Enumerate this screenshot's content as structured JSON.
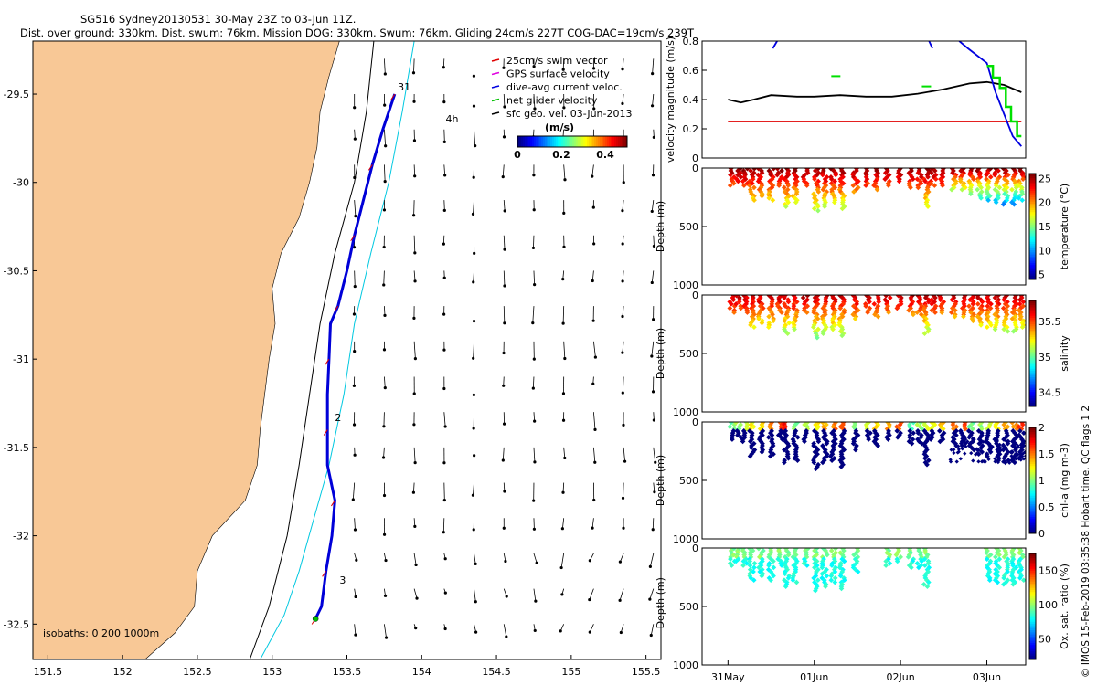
{
  "header": {
    "line1": "SG516 Sydney20130531 30-May 23Z to 03-Jun 11Z.",
    "line2": "Dist. over ground: 330km. Dist. swum: 76km. Mission DOG: 330km. Swum: 76km. Gliding 24cm/s 227T COG-DAC=19cm/s 239T"
  },
  "credit": "© IMOS 15-Feb-2019 03:35:38 Hobart time. QC flags 1  2",
  "chart_data": [
    {
      "type": "map",
      "xlim": [
        151.4,
        155.6
      ],
      "ylim": [
        -32.7,
        -29.2
      ],
      "xticks": [
        151.5,
        152,
        152.5,
        153,
        153.5,
        154,
        154.5,
        155,
        155.5
      ],
      "xtick_labels": [
        "151.5",
        "152",
        "152.5",
        "153",
        "153.5",
        "154",
        "154.5",
        "155",
        "155.5"
      ],
      "yticks": [
        -29.5,
        -30,
        -30.5,
        -31,
        -31.5,
        -32,
        -32.5
      ],
      "ytick_labels": [
        "-29.5",
        "-30",
        "-30.5",
        "-31",
        "-31.5",
        "-32",
        "-32.5"
      ],
      "land_color": "#f8c896",
      "coast": [
        [
          -29.2,
          153.45
        ],
        [
          -29.4,
          153.38
        ],
        [
          -29.6,
          153.32
        ],
        [
          -29.8,
          153.3
        ],
        [
          -30.0,
          153.25
        ],
        [
          -30.2,
          153.18
        ],
        [
          -30.4,
          153.06
        ],
        [
          -30.6,
          153.0
        ],
        [
          -30.8,
          153.02
        ],
        [
          -31.0,
          152.98
        ],
        [
          -31.2,
          152.95
        ],
        [
          -31.4,
          152.92
        ],
        [
          -31.6,
          152.9
        ],
        [
          -31.8,
          152.82
        ],
        [
          -32.0,
          152.6
        ],
        [
          -32.2,
          152.5
        ],
        [
          -32.4,
          152.48
        ],
        [
          -32.55,
          152.35
        ],
        [
          -32.7,
          152.15
        ]
      ],
      "isobath_200": [
        [
          -29.2,
          153.68
        ],
        [
          -29.6,
          153.63
        ],
        [
          -30.0,
          153.55
        ],
        [
          -30.4,
          153.42
        ],
        [
          -30.8,
          153.32
        ],
        [
          -31.2,
          153.25
        ],
        [
          -31.6,
          153.18
        ],
        [
          -32.0,
          153.1
        ],
        [
          -32.4,
          152.98
        ],
        [
          -32.7,
          152.85
        ]
      ],
      "isobath_1000": [
        [
          -29.2,
          153.95
        ],
        [
          -29.6,
          153.87
        ],
        [
          -30.0,
          153.78
        ],
        [
          -30.4,
          153.66
        ],
        [
          -30.8,
          153.55
        ],
        [
          -31.2,
          153.48
        ],
        [
          -31.6,
          153.38
        ],
        [
          -31.9,
          153.28
        ],
        [
          -32.2,
          153.18
        ],
        [
          -32.45,
          153.08
        ],
        [
          -32.7,
          152.92
        ]
      ],
      "track": [
        [
          -29.5,
          153.82
        ],
        [
          -29.7,
          153.74
        ],
        [
          -29.9,
          153.67
        ],
        [
          -30.1,
          153.61
        ],
        [
          -30.3,
          153.55
        ],
        [
          -30.5,
          153.5
        ],
        [
          -30.7,
          153.44
        ],
        [
          -30.8,
          153.39
        ],
        [
          -31.0,
          153.38
        ],
        [
          -31.2,
          153.37
        ],
        [
          -31.4,
          153.37
        ],
        [
          -31.6,
          153.37
        ],
        [
          -31.8,
          153.42
        ],
        [
          -32.0,
          153.4
        ],
        [
          -32.2,
          153.36
        ],
        [
          -32.4,
          153.33
        ],
        [
          -32.47,
          153.29
        ]
      ],
      "track_labels": [
        {
          "text": "31",
          "lat": -29.48,
          "lon": 153.84
        },
        {
          "text": "2",
          "lat": -31.35,
          "lon": 153.42
        },
        {
          "text": "3",
          "lat": -32.27,
          "lon": 153.45
        },
        {
          "text": "4h",
          "lat": -29.66,
          "lon": 154.16
        }
      ],
      "isobath_text": "isobaths: 0   200   1000m",
      "legend": [
        "25cm/s swim vector",
        "GPS surface velocity",
        "dive-avg current veloc.",
        "net glider velocity",
        "sfc geo. vel. 03-Jun-2013"
      ],
      "legend_colors": [
        "#e00000",
        "#e000e0",
        "#0000e0",
        "#00c000",
        "#000000"
      ],
      "colorbar": {
        "label": "(m/s)",
        "ticks": [
          0,
          0.2,
          0.4
        ],
        "tick_labels": [
          "0",
          "0.2",
          "0.4"
        ],
        "range": [
          0,
          0.5
        ]
      }
    },
    {
      "type": "line",
      "ylabel": "velocity magnitude (m/s)",
      "ylim": [
        0,
        0.8
      ],
      "yticks": [
        0,
        0.2,
        0.4,
        0.6,
        0.8
      ],
      "ytick_labels": [
        "0",
        "0.2",
        "0.4",
        "0.6",
        "0.8"
      ],
      "xlim": [
        -0.3,
        3.45
      ],
      "series": [
        {
          "color": "#000000",
          "x": [
            0,
            0.15,
            0.3,
            0.5,
            0.8,
            1.0,
            1.3,
            1.6,
            1.9,
            2.2,
            2.5,
            2.8,
            3.0,
            3.2,
            3.4
          ],
          "y": [
            0.4,
            0.38,
            0.4,
            0.43,
            0.42,
            0.42,
            0.43,
            0.42,
            0.42,
            0.44,
            0.47,
            0.51,
            0.52,
            0.5,
            0.45
          ]
        },
        {
          "color": "#e00000",
          "x": [
            0,
            3.4
          ],
          "y": [
            0.25,
            0.25
          ]
        },
        {
          "color": "#0000e0",
          "x": [
            2.68,
            2.78,
            3.0,
            3.1,
            3.2,
            3.3,
            3.4
          ],
          "y": [
            0.8,
            0.75,
            0.65,
            0.45,
            0.3,
            0.15,
            0.08
          ]
        },
        {
          "color": "#0000e0",
          "x": [
            0.52,
            0.57
          ],
          "y": [
            0.75,
            0.8
          ]
        },
        {
          "color": "#0000e0",
          "x": [
            2.33,
            2.37
          ],
          "y": [
            0.8,
            0.75
          ]
        },
        {
          "color": "#00e000",
          "x": [
            3.0,
            3.07,
            3.07,
            3.15,
            3.15,
            3.22,
            3.22,
            3.28,
            3.28,
            3.35,
            3.35,
            3.4
          ],
          "y": [
            0.63,
            0.63,
            0.55,
            0.55,
            0.48,
            0.48,
            0.35,
            0.35,
            0.25,
            0.25,
            0.15,
            0.15
          ]
        }
      ],
      "green_ticks": [
        {
          "x": 1.25,
          "y": 0.56
        },
        {
          "x": 2.3,
          "y": 0.49
        }
      ]
    },
    {
      "type": "scatter",
      "ylabel": "Depth (m)",
      "yticks": [
        0,
        500,
        1000
      ],
      "ytick_labels": [
        "0",
        "500",
        "1000"
      ],
      "ylim": [
        1000,
        0
      ],
      "xlim": [
        -0.3,
        3.45
      ],
      "cbar_label": "temperature (°C)",
      "cbar_ticks": [
        5,
        10,
        15,
        20,
        25
      ],
      "cbar_tick_labels": [
        "5",
        "10",
        "15",
        "20",
        "25"
      ],
      "cbar_range": [
        4,
        26
      ],
      "variable": "temperature"
    },
    {
      "type": "scatter",
      "ylabel": "Depth (m)",
      "yticks": [
        0,
        500,
        1000
      ],
      "ytick_labels": [
        "0",
        "500",
        "1000"
      ],
      "ylim": [
        1000,
        0
      ],
      "xlim": [
        -0.3,
        3.45
      ],
      "cbar_label": "salinity",
      "cbar_ticks": [
        34.5,
        35,
        35.5
      ],
      "cbar_tick_labels": [
        "34.5",
        "35",
        "35.5"
      ],
      "cbar_range": [
        34.3,
        35.8
      ],
      "variable": "salinity"
    },
    {
      "type": "scatter",
      "ylabel": "Depth (m)",
      "yticks": [
        0,
        500,
        1000
      ],
      "ytick_labels": [
        "0",
        "500",
        "1000"
      ],
      "ylim": [
        1000,
        0
      ],
      "xlim": [
        -0.3,
        3.45
      ],
      "cbar_label": "chl-a (mg m-3)",
      "cbar_ticks": [
        0,
        0.5,
        1,
        1.5,
        2
      ],
      "cbar_tick_labels": [
        "0",
        "0.5",
        "1",
        "1.5",
        "2"
      ],
      "cbar_range": [
        0,
        2
      ],
      "variable": "chl"
    },
    {
      "type": "scatter",
      "ylabel": "- Depth (m)",
      "yticks": [
        0,
        500,
        1000
      ],
      "ytick_labels": [
        "0",
        "500",
        "1000"
      ],
      "ylim": [
        1000,
        0
      ],
      "xlim": [
        -0.3,
        3.45
      ],
      "xticks": [
        0,
        1,
        2,
        3
      ],
      "xtick_labels": [
        "31May",
        "01Jun",
        "02Jun",
        "03Jun"
      ],
      "cbar_label": "Ox. sat. ratio (%)",
      "cbar_ticks": [
        50,
        100,
        150
      ],
      "cbar_tick_labels": [
        "50",
        "100",
        "150"
      ],
      "cbar_range": [
        20,
        175
      ],
      "variable": "oxygen"
    }
  ]
}
